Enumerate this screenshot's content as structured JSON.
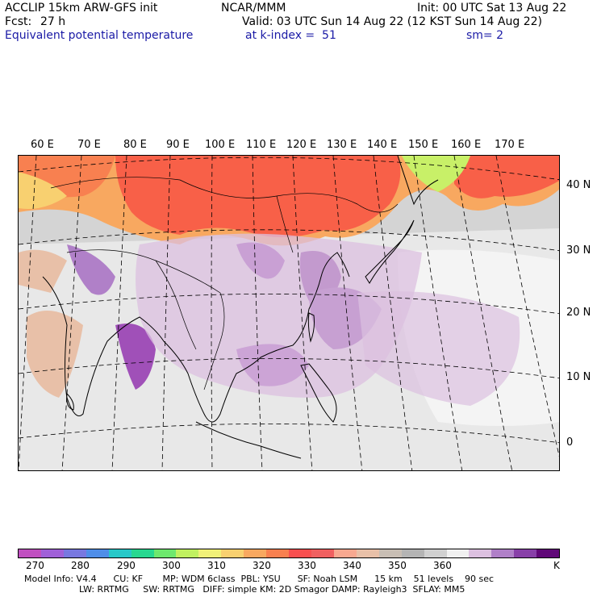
{
  "header": {
    "model_line": "ACCLIP 15km ARW-GFS init",
    "org": "NCAR/MMM",
    "init": "Init: 00 UTC Sat 13 Aug 22",
    "fcst_label": "Fcst:",
    "fcst_value": "27 h",
    "valid": "Valid: 03 UTC Sun 14 Aug 22 (12 KST Sun 14 Aug 22)",
    "field": "Equivalent potential temperature",
    "level": "at k-index =  51",
    "smooth": "sm= 2"
  },
  "map": {
    "lon_labels": [
      "60 E",
      "70 E",
      "80 E",
      "90 E",
      "100 E",
      "110 E",
      "120 E",
      "130 E",
      "140 E",
      "150 E",
      "160 E",
      "170 E"
    ],
    "lat_labels": [
      "40 N",
      "30 N",
      "20 N",
      "10 N",
      "0"
    ]
  },
  "colorbar": {
    "colors": [
      "#c050c0",
      "#a060d8",
      "#7878e0",
      "#4f8ee8",
      "#28c8c8",
      "#28d890",
      "#6ee86e",
      "#c0f060",
      "#f0f078",
      "#f8d070",
      "#f8a860",
      "#f88050",
      "#f85050",
      "#f06060",
      "#f8a890",
      "#e8c0a8",
      "#c8beb4",
      "#b4b4b4",
      "#d0d0d0",
      "#f0f0f0",
      "#dcc0e0",
      "#b080c8",
      "#8840a8",
      "#600878"
    ],
    "ticks": [
      "270",
      "280",
      "290",
      "300",
      "310",
      "320",
      "330",
      "340",
      "350",
      "360",
      "K"
    ]
  },
  "footer": {
    "line1": "Model Info: V4.4      CU: KF       MP: WDM 6class  PBL: YSU      SF: Noah LSM      15 km    51 levels    90 sec",
    "line2": "LW: RRTMG     SW: RRTMG   DIFF: simple KM: 2D Smagor DAMP: Rayleigh3  SFLAY: MM5"
  }
}
